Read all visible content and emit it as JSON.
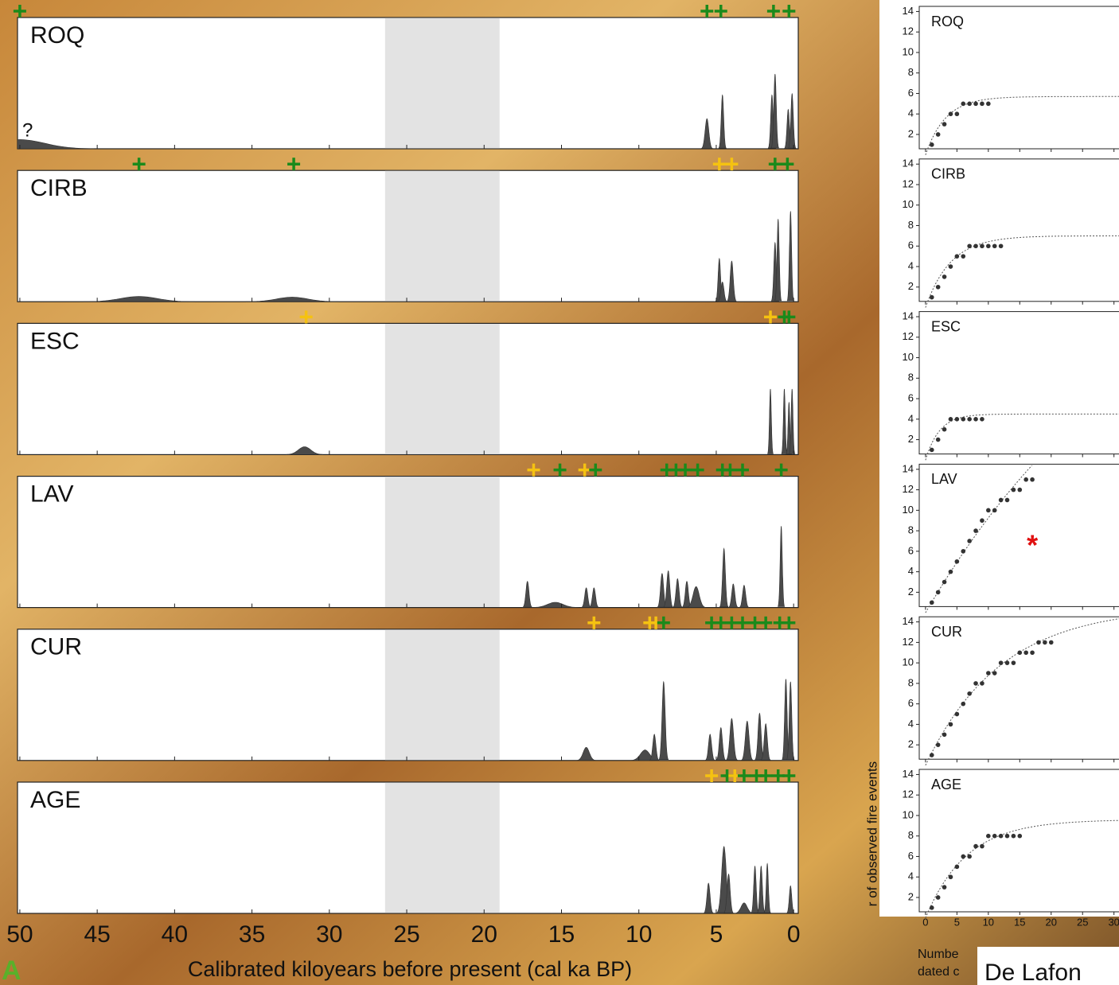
{
  "chart_data": [
    {
      "type": "density",
      "xlabel": "Calibrated kiloyears before present (cal ka BP)",
      "xlim": [
        50.15,
        -0.3
      ],
      "xticks": [
        50,
        45,
        40,
        35,
        30,
        25,
        20,
        15,
        10,
        5,
        0
      ],
      "ylim": [
        0,
        1
      ],
      "shaded_region": [
        26.4,
        19
      ],
      "date_colors": {
        "green": "#1b8a1b",
        "yellow": "#f5c211"
      },
      "panels": [
        {
          "name": "ROQ",
          "annotation": "?",
          "peaks": {
            "ages": [
              50,
              5.6,
              4.6,
              1.4,
              1.2,
              0.35,
              0.1
            ],
            "heights": [
              0.07,
              0.23,
              0.41,
              0.41,
              0.57,
              0.3,
              0.42
            ],
            "widths": [
              1.6,
              0.12,
              0.08,
              0.08,
              0.08,
              0.08,
              0.08
            ]
          },
          "dates": {
            "ages": [
              50,
              5.6,
              4.7,
              1.3,
              0.3
            ],
            "colors": [
              "green",
              "green",
              "green",
              "green",
              "green"
            ]
          }
        },
        {
          "name": "CIRB",
          "peaks": {
            "ages": [
              42.3,
              32.4,
              4.8,
              4.6,
              4.0,
              1.2,
              1.0,
              0.2
            ],
            "heights": [
              0.04,
              0.035,
              0.33,
              0.15,
              0.31,
              0.45,
              0.63,
              0.69
            ],
            "widths": [
              1.2,
              1.0,
              0.08,
              0.1,
              0.1,
              0.08,
              0.07,
              0.07
            ]
          },
          "dates": {
            "ages": [
              42.3,
              32.3,
              4.8,
              4.0,
              1.2,
              0.4
            ],
            "colors": [
              "green",
              "green",
              "yellow",
              "yellow",
              "green",
              "green"
            ]
          }
        },
        {
          "name": "ESC",
          "peaks": {
            "ages": [
              31.6,
              1.5,
              0.6,
              0.3,
              0.1
            ],
            "heights": [
              0.06,
              0.5,
              0.5,
              0.4,
              0.5
            ],
            "widths": [
              0.4,
              0.06,
              0.06,
              0.06,
              0.06
            ]
          },
          "dates": {
            "ages": [
              31.5,
              1.5,
              0.6,
              0.3
            ],
            "colors": [
              "yellow",
              "yellow",
              "green",
              "green"
            ]
          }
        },
        {
          "name": "LAV",
          "peaks": {
            "ages": [
              17.2,
              15.4,
              13.4,
              12.9,
              8.5,
              8.1,
              7.5,
              6.9,
              6.3,
              4.5,
              3.9,
              3.2,
              0.8
            ],
            "heights": [
              0.2,
              0.04,
              0.15,
              0.15,
              0.26,
              0.28,
              0.22,
              0.2,
              0.16,
              0.45,
              0.18,
              0.17,
              0.62
            ],
            "widths": [
              0.1,
              0.5,
              0.1,
              0.1,
              0.1,
              0.1,
              0.1,
              0.1,
              0.2,
              0.09,
              0.1,
              0.1,
              0.07
            ]
          },
          "dates": {
            "ages": [
              16.8,
              15.1,
              13.5,
              12.8,
              8.2,
              7.6,
              7.0,
              6.2,
              4.6,
              4.1,
              3.3,
              0.8
            ],
            "colors": [
              "yellow",
              "green",
              "yellow",
              "green",
              "green",
              "green",
              "green",
              "green",
              "green",
              "green",
              "green",
              "green"
            ]
          }
        },
        {
          "name": "CUR",
          "peaks": {
            "ages": [
              13.4,
              9.6,
              9.0,
              8.4,
              5.4,
              4.7,
              4.0,
              3.0,
              2.2,
              1.8,
              0.5,
              0.2
            ],
            "heights": [
              0.1,
              0.08,
              0.2,
              0.6,
              0.2,
              0.25,
              0.32,
              0.3,
              0.36,
              0.28,
              0.62,
              0.6
            ],
            "widths": [
              0.2,
              0.3,
              0.1,
              0.1,
              0.1,
              0.1,
              0.12,
              0.12,
              0.1,
              0.1,
              0.08,
              0.08
            ]
          },
          "dates": {
            "ages": [
              12.9,
              9.3,
              8.9,
              8.4,
              5.3,
              4.7,
              4.0,
              3.3,
              2.5,
              1.8,
              0.9,
              0.3
            ],
            "colors": [
              "yellow",
              "yellow",
              "yellow",
              "green",
              "green",
              "green",
              "green",
              "green",
              "green",
              "green",
              "green",
              "green"
            ]
          }
        },
        {
          "name": "AGE",
          "peaks": {
            "ages": [
              5.5,
              4.5,
              4.2,
              3.2,
              2.5,
              2.1,
              1.7,
              0.2
            ],
            "heights": [
              0.23,
              0.51,
              0.3,
              0.08,
              0.36,
              0.36,
              0.38,
              0.21
            ],
            "widths": [
              0.1,
              0.15,
              0.1,
              0.2,
              0.08,
              0.08,
              0.07,
              0.08
            ]
          },
          "dates": {
            "ages": [
              5.3,
              4.3,
              3.8,
              3.2,
              2.4,
              1.8,
              1.0,
              0.3
            ],
            "colors": [
              "yellow",
              "green",
              "yellow",
              "green",
              "green",
              "green",
              "green",
              "green"
            ]
          }
        }
      ]
    },
    {
      "type": "scatter",
      "ylabel": "r of observed fire events",
      "xlabel_lines": [
        "Numbe",
        "dated c"
      ],
      "xlim": [
        -1,
        30.8
      ],
      "xticks": [
        0,
        5,
        10,
        15,
        20,
        25,
        30
      ],
      "ylim": [
        0.6,
        14.5
      ],
      "yticks": [
        2,
        4,
        6,
        8,
        10,
        12,
        14
      ],
      "point_color": "#333333",
      "annotation": {
        "text": "*",
        "panel": 3,
        "x": 17,
        "y": 7,
        "color": "#e01010"
      },
      "panels": [
        {
          "name": "ROQ",
          "x": [
            1,
            2,
            3,
            4,
            5,
            6,
            7,
            8,
            9,
            10
          ],
          "values": [
            1,
            2,
            3,
            4,
            4,
            5,
            5,
            5,
            5,
            5
          ],
          "fit": {
            "asymptote": 5.7,
            "scale": 3.2
          }
        },
        {
          "name": "CIRB",
          "x": [
            1,
            2,
            3,
            4,
            5,
            6,
            7,
            8,
            9,
            10,
            11,
            12
          ],
          "values": [
            1,
            2,
            3,
            4,
            5,
            5,
            6,
            6,
            6,
            6,
            6,
            6
          ],
          "fit": {
            "asymptote": 7,
            "scale": 4
          }
        },
        {
          "name": "ESC",
          "x": [
            1,
            2,
            3,
            4,
            5,
            6,
            7,
            8,
            9
          ],
          "values": [
            1,
            2,
            3,
            4,
            4,
            4,
            4,
            4,
            4
          ],
          "fit": {
            "asymptote": 4.5,
            "scale": 2.2
          }
        },
        {
          "name": "LAV",
          "x": [
            1,
            2,
            3,
            4,
            5,
            6,
            7,
            8,
            9,
            10,
            11,
            12,
            13,
            14,
            15,
            16,
            17
          ],
          "values": [
            1,
            2,
            3,
            4,
            5,
            6,
            7,
            8,
            9,
            10,
            10,
            11,
            11,
            12,
            12,
            13,
            13
          ],
          "fit": {
            "asymptote": 40,
            "scale": 38
          }
        },
        {
          "name": "CUR",
          "x": [
            1,
            2,
            3,
            4,
            5,
            6,
            7,
            8,
            9,
            10,
            11,
            12,
            13,
            14,
            15,
            16,
            17,
            18,
            19,
            20
          ],
          "values": [
            1,
            2,
            3,
            4,
            5,
            6,
            7,
            8,
            8,
            9,
            9,
            10,
            10,
            10,
            11,
            11,
            11,
            12,
            12,
            12
          ],
          "fit": {
            "asymptote": 15.5,
            "scale": 12
          }
        },
        {
          "name": "AGE",
          "x": [
            1,
            2,
            3,
            4,
            5,
            6,
            7,
            8,
            9,
            10,
            11,
            12,
            13,
            14,
            15
          ],
          "values": [
            1,
            2,
            3,
            4,
            5,
            6,
            6,
            7,
            7,
            8,
            8,
            8,
            8,
            8,
            8
          ],
          "fit": {
            "asymptote": 9.6,
            "scale": 6.5
          }
        }
      ]
    }
  ],
  "panel_letter": "A",
  "footer": "De Lafon"
}
